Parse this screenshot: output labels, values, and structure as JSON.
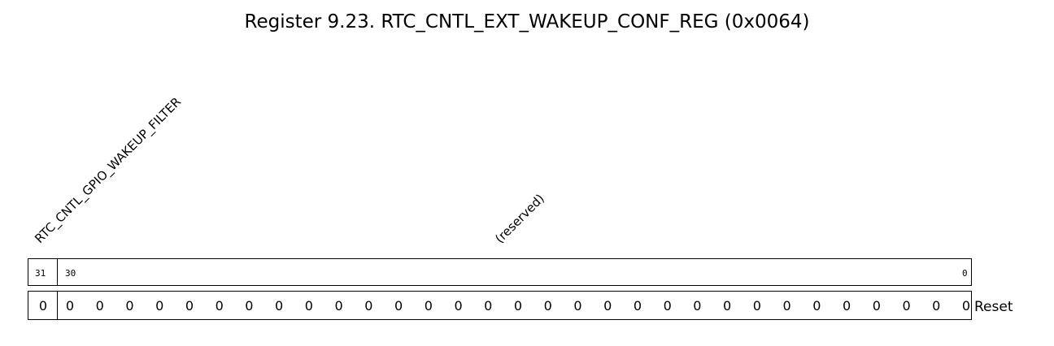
{
  "title": "Register 9.23. RTC_CNTL_EXT_WAKEUP_CONF_REG (0x0064)",
  "fields": {
    "filter": {
      "label": "RTC_CNTL_GPIO_WAKEUP_FILTER"
    },
    "reserved": {
      "label": "(reserved)"
    }
  },
  "bit_labels": {
    "b31": "31",
    "b30": "30",
    "b0": "0"
  },
  "reset_values": [
    "0",
    "0",
    "0",
    "0",
    "0",
    "0",
    "0",
    "0",
    "0",
    "0",
    "0",
    "0",
    "0",
    "0",
    "0",
    "0",
    "0",
    "0",
    "0",
    "0",
    "0",
    "0",
    "0",
    "0",
    "0",
    "0",
    "0",
    "0",
    "0",
    "0",
    "0",
    "0"
  ],
  "reset_label": "Reset"
}
